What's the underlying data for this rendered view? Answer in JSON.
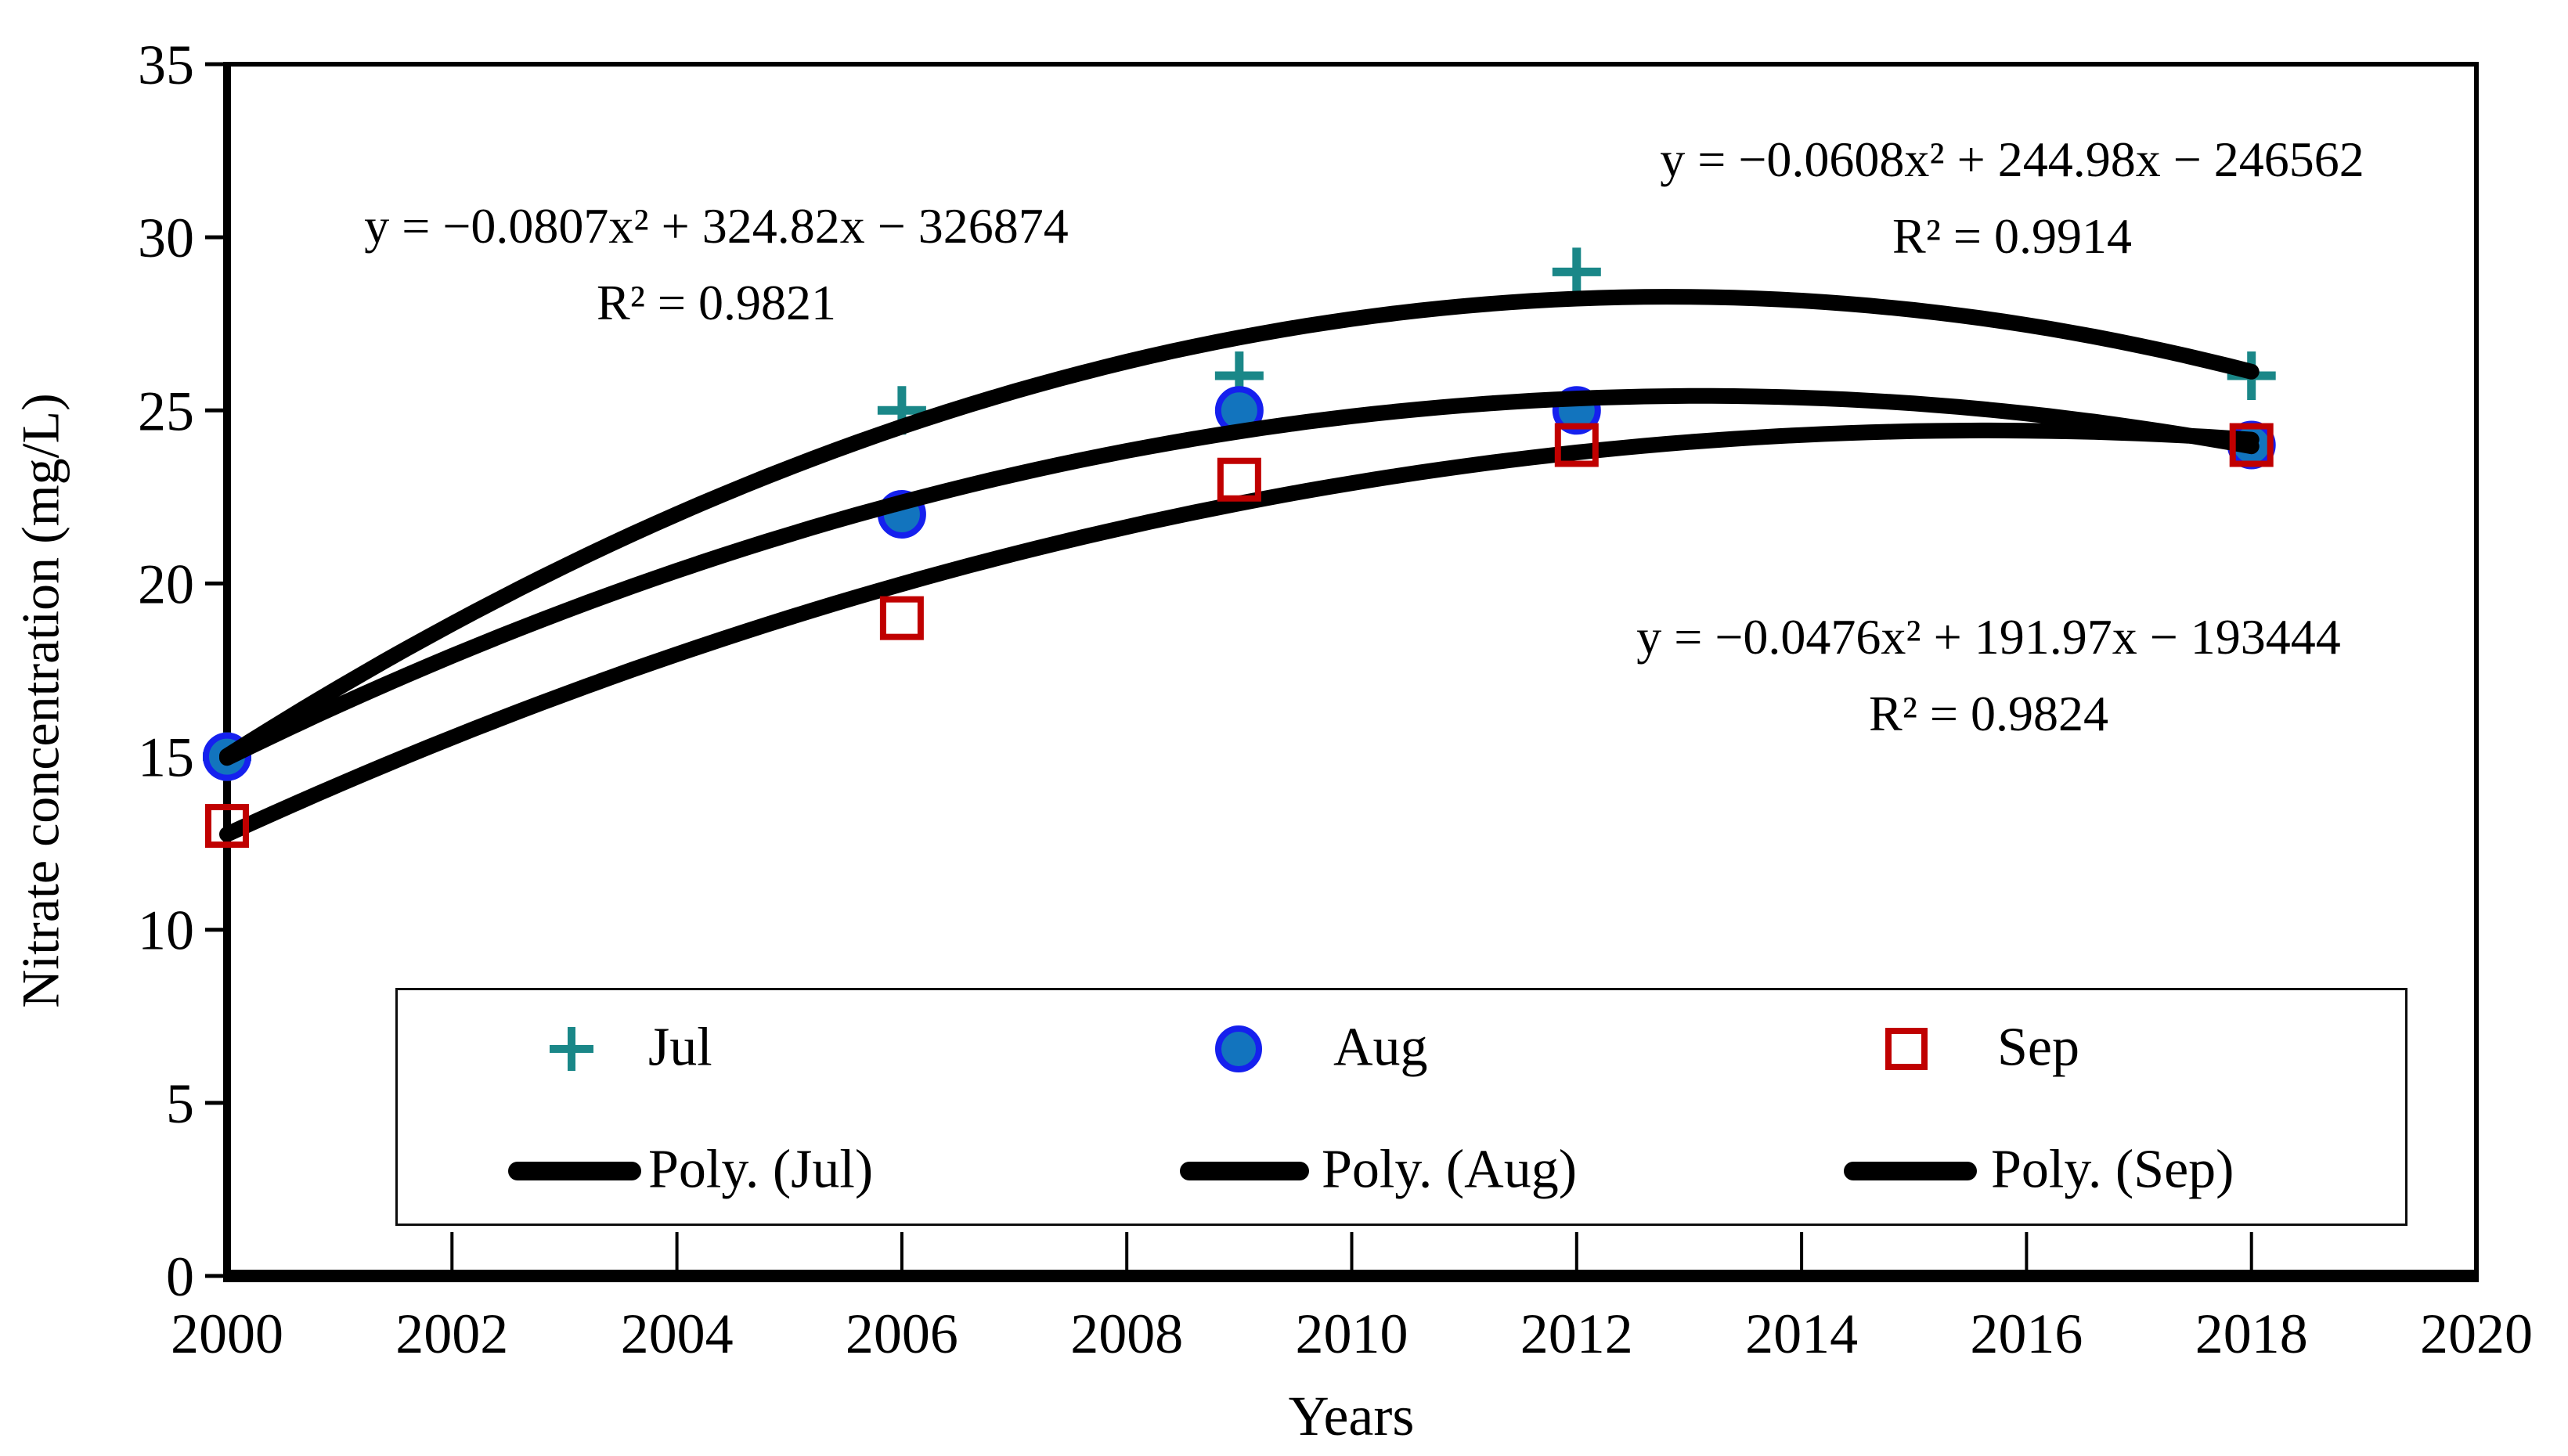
{
  "chart_data": {
    "type": "scatter",
    "title": "",
    "xlabel": "Years",
    "ylabel": "Nitrate concentration (mg/L)",
    "xlim": [
      2000,
      2020
    ],
    "ylim": [
      0,
      35
    ],
    "x_tick_labels": [
      "2000",
      "2002",
      "2004",
      "2006",
      "2008",
      "2010",
      "2012",
      "2014",
      "2016",
      "2018",
      "2020"
    ],
    "y_tick_labels": [
      "0",
      "5",
      "10",
      "15",
      "20",
      "25",
      "30",
      "35"
    ],
    "grid": false,
    "legend_position": "bottom-inside",
    "axis_color": "#000000",
    "x": [
      2000,
      2006,
      2009,
      2012,
      2018
    ],
    "series": [
      {
        "name": "Jul",
        "marker": "plus",
        "color": "#1A8788",
        "values": [
          15,
          25,
          26,
          29,
          26
        ],
        "trendline": {
          "type": "polynomial",
          "degree": 2,
          "label": "Poly. (Jul)",
          "color": "#000000",
          "equation": "y = −0.0807x² + 324.82x − 326874",
          "r_squared": "R² = 0.9821"
        }
      },
      {
        "name": "Aug",
        "marker": "circle",
        "color": "#1274BE",
        "stroke": "#1520EE",
        "values": [
          15,
          22,
          25,
          25,
          24
        ],
        "trendline": {
          "type": "polynomial",
          "degree": 2,
          "label": "Poly. (Aug)",
          "color": "#000000",
          "equation": "y = −0.0608x² + 244.98x − 246562",
          "r_squared": "R² = 0.9914"
        }
      },
      {
        "name": "Sep",
        "marker": "square",
        "color": "#C00000",
        "values": [
          13,
          19,
          23,
          24,
          24
        ],
        "trendline": {
          "type": "polynomial",
          "degree": 2,
          "label": "Poly. (Sep)",
          "color": "#000000",
          "equation": "y = −0.0476x² + 191.97x − 193444",
          "r_squared": "R² = 0.9824"
        }
      }
    ]
  }
}
